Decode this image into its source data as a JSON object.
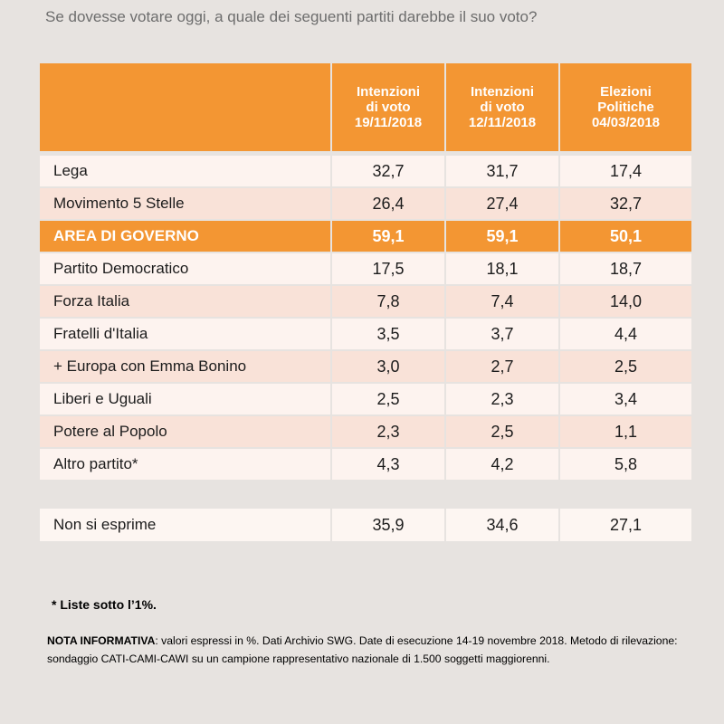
{
  "question": "Se dovesse votare oggi, a quale dei seguenti partiti darebbe il suo voto?",
  "columns": [
    {
      "line1": "Intenzioni",
      "line2": "di voto",
      "line3": "19/11/2018"
    },
    {
      "line1": "Intenzioni",
      "line2": "di voto",
      "line3": "12/11/2018"
    },
    {
      "line1": "Elezioni",
      "line2": "Politiche",
      "line3": "04/03/2018"
    }
  ],
  "chart_data": {
    "type": "table",
    "title": "Se dovesse votare oggi, a quale dei seguenti partiti darebbe il suo voto?",
    "columns": [
      "Intenzioni di voto 19/11/2018",
      "Intenzioni di voto 12/11/2018",
      "Elezioni Politiche 04/03/2018"
    ],
    "rows": [
      {
        "label": "Lega",
        "values": [
          "32,7",
          "31,7",
          "17,4"
        ]
      },
      {
        "label": "Movimento 5 Stelle",
        "values": [
          "26,4",
          "27,4",
          "32,7"
        ]
      },
      {
        "label": "AREA DI GOVERNO",
        "values": [
          "59,1",
          "59,1",
          "50,1"
        ]
      },
      {
        "label": "Partito Democratico",
        "values": [
          "17,5",
          "18,1",
          "18,7"
        ]
      },
      {
        "label": "Forza Italia",
        "values": [
          "7,8",
          "7,4",
          "14,0"
        ]
      },
      {
        "label": "Fratelli d'Italia",
        "values": [
          "3,5",
          "3,7",
          "4,4"
        ]
      },
      {
        "label": "+ Europa con Emma Bonino",
        "values": [
          "3,0",
          "2,7",
          "2,5"
        ]
      },
      {
        "label": "Liberi e Uguali",
        "values": [
          "2,5",
          "2,3",
          "3,4"
        ]
      },
      {
        "label": "Potere al Popolo",
        "values": [
          "2,3",
          "2,5",
          "1,1"
        ]
      },
      {
        "label": "Altro partito*",
        "values": [
          "4,3",
          "4,2",
          "5,8"
        ]
      }
    ],
    "extra_row": {
      "label": "Non si esprime",
      "values": [
        "35,9",
        "34,6",
        "27,1"
      ]
    }
  },
  "footnote": "* Liste sotto l’1%.",
  "nota_label": "NOTA INFORMATIVA",
  "nota_text": ": valori espressi in %. Dati Archivio SWG. Date di esecuzione 14-19 novembre 2018. Metodo di rilevazione: sondaggio CATI-CAMI-CAWI su un campione rappresentativo nazionale di 1.500 soggetti maggiorenni.",
  "colors": {
    "accent": "#f39633",
    "row_light": "#fdf3ef",
    "row_pink": "#f9e2d8",
    "background": "#e7e3e0"
  }
}
